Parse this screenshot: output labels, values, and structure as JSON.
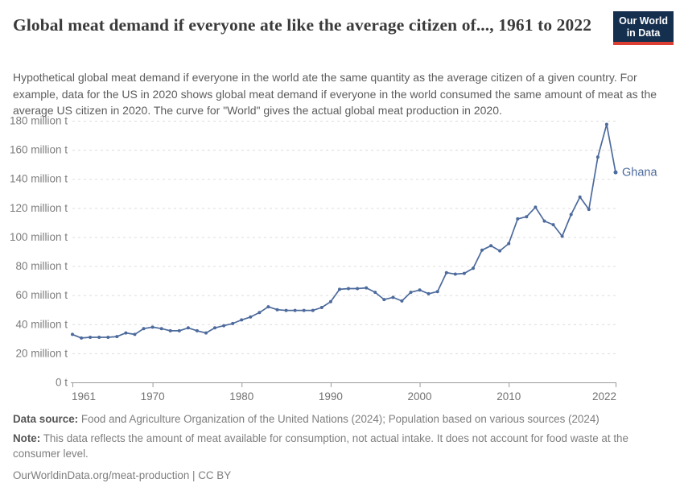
{
  "header": {
    "title": "Global meat demand if everyone ate like the average citizen of..., 1961 to 2022",
    "subtitle": "Hypothetical global meat demand if everyone in the world ate the same quantity as the average citizen of a given country. For example, data for the US in 2020 shows global meat demand if everyone in the world consumed the same amount of meat as the average US citizen in 2020. The curve for \"World\" gives the actual global meat production in 2020.",
    "logo": {
      "line1": "Our World",
      "line2": "in Data",
      "bg_color": "#15304e",
      "accent_color": "#dc3e32"
    }
  },
  "chart_data": {
    "type": "line",
    "title": "Global meat demand if everyone ate like the average citizen of..., 1961 to 2022",
    "unit": "million t",
    "xlim": [
      1961,
      2022
    ],
    "ylim": [
      0,
      180
    ],
    "grid": "horizontal-dashed",
    "legend_position": "end-of-line-label",
    "x_ticks": [
      1961,
      1970,
      1980,
      1990,
      2000,
      2010,
      2022
    ],
    "y_ticks": [
      {
        "v": 0,
        "label": "0 t"
      },
      {
        "v": 20,
        "label": "20 million t"
      },
      {
        "v": 40,
        "label": "40 million t"
      },
      {
        "v": 60,
        "label": "60 million t"
      },
      {
        "v": 80,
        "label": "80 million t"
      },
      {
        "v": 100,
        "label": "100 million t"
      },
      {
        "v": 120,
        "label": "120 million t"
      },
      {
        "v": 140,
        "label": "140 million t"
      },
      {
        "v": 160,
        "label": "160 million t"
      },
      {
        "v": 180,
        "label": "180 million t"
      }
    ],
    "series": [
      {
        "name": "Ghana",
        "color": "#4C6A9C",
        "x_start": 1961,
        "values": [
          33,
          30.5,
          31,
          31,
          31,
          31.5,
          34,
          33,
          37,
          38,
          37,
          35.5,
          35.5,
          37.5,
          35.5,
          34,
          37.5,
          39,
          40.5,
          43,
          45,
          48,
          52,
          50,
          49.5,
          49.5,
          49.5,
          49.5,
          51.5,
          55.5,
          64,
          64.5,
          64.5,
          65,
          62,
          57,
          58.5,
          56,
          62,
          63.5,
          61,
          62.5,
          75.5,
          74.5,
          75,
          78.5,
          91,
          94,
          90.5,
          95.5,
          112.5,
          114,
          120.5,
          111,
          108.5,
          100.5,
          115.5,
          127.5,
          119,
          155,
          177.5,
          144.5
        ]
      }
    ]
  },
  "footer": {
    "data_source_label": "Data source:",
    "data_source_text": " Food and Agriculture Organization of the United Nations (2024); Population based on various sources (2024)",
    "note_label": "Note:",
    "note_text": " This data reflects the amount of meat available for consumption, not actual intake. It does not account for food waste at the consumer level.",
    "url_line": "OurWorldinData.org/meat-production | CC BY"
  }
}
